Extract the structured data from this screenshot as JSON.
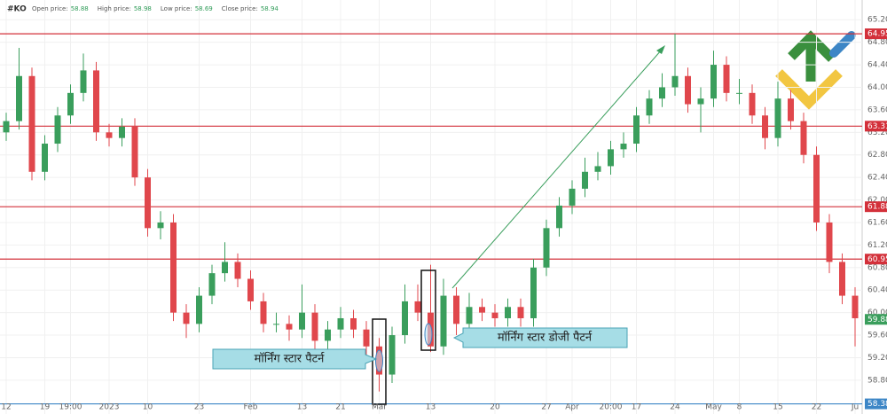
{
  "header": {
    "symbol": "#KO",
    "fields": [
      {
        "label": "Open price:",
        "value": 58.88
      },
      {
        "label": "High price:",
        "value": 58.98
      },
      {
        "label": "Low price:",
        "value": 58.69
      },
      {
        "label": "Close price:",
        "value": 58.94
      }
    ]
  },
  "chart_data": {
    "type": "candlestick",
    "categories": [
      "12",
      null,
      null,
      "19",
      null,
      "19:00",
      null,
      null,
      "2023",
      null,
      null,
      "10",
      null,
      null,
      null,
      "23",
      null,
      null,
      null,
      "Feb",
      null,
      null,
      null,
      "13",
      null,
      null,
      "21",
      null,
      null,
      "Mar",
      null,
      null,
      null,
      "13",
      null,
      null,
      null,
      null,
      "20",
      null,
      null,
      null,
      "27",
      null,
      "Apr",
      null,
      null,
      "20:00",
      null,
      "17",
      null,
      null,
      "24",
      null,
      null,
      "May",
      null,
      "8",
      null,
      null,
      "15",
      null,
      null,
      "22",
      null,
      null,
      "Ju"
    ],
    "open": [
      63.2,
      63.4,
      64.2,
      62.5,
      63.0,
      63.5,
      63.9,
      64.3,
      63.2,
      63.1,
      63.3,
      62.4,
      61.5,
      61.6,
      60.0,
      59.8,
      60.3,
      60.7,
      60.9,
      60.6,
      60.2,
      59.8,
      59.8,
      59.7,
      60.0,
      59.5,
      59.7,
      59.9,
      59.7,
      59.4,
      58.9,
      59.6,
      60.2,
      60.0,
      59.4,
      60.3,
      59.8,
      60.1,
      60.0,
      59.9,
      60.1,
      59.9,
      60.8,
      61.5,
      61.9,
      62.2,
      62.5,
      62.6,
      62.9,
      63.0,
      63.5,
      63.8,
      64.0,
      64.2,
      63.7,
      63.8,
      64.4,
      63.9,
      63.9,
      63.5,
      63.1,
      63.8,
      63.4,
      62.8,
      61.6,
      60.9,
      60.3
    ],
    "high": [
      63.55,
      64.7,
      64.35,
      63.15,
      63.65,
      64.05,
      64.6,
      64.45,
      63.35,
      63.45,
      63.45,
      62.55,
      61.8,
      61.75,
      60.15,
      60.45,
      60.85,
      61.25,
      61.05,
      60.75,
      60.35,
      60.0,
      59.95,
      60.5,
      60.15,
      59.85,
      60.1,
      60.05,
      59.85,
      59.55,
      59.75,
      60.5,
      60.5,
      60.85,
      60.6,
      60.45,
      60.35,
      60.25,
      60.15,
      60.25,
      60.25,
      60.95,
      61.65,
      62.05,
      62.35,
      62.75,
      62.85,
      63.05,
      63.2,
      63.65,
      63.95,
      64.25,
      64.95,
      64.35,
      64.0,
      64.65,
      64.55,
      64.15,
      64.05,
      63.65,
      64.1,
      63.95,
      63.55,
      62.95,
      61.75,
      61.05,
      60.45
    ],
    "low": [
      63.05,
      63.25,
      62.35,
      62.35,
      62.85,
      63.35,
      63.75,
      63.05,
      62.95,
      62.95,
      62.25,
      61.35,
      61.3,
      59.85,
      59.55,
      59.65,
      60.15,
      60.55,
      60.45,
      60.05,
      59.65,
      59.65,
      59.5,
      59.55,
      59.35,
      59.35,
      59.55,
      59.55,
      59.25,
      58.6,
      58.75,
      59.45,
      59.85,
      59.3,
      59.25,
      59.6,
      59.65,
      59.85,
      59.75,
      59.75,
      59.75,
      59.75,
      60.65,
      61.35,
      61.75,
      62.05,
      62.35,
      62.45,
      62.75,
      62.85,
      63.35,
      63.65,
      63.85,
      63.55,
      63.2,
      63.65,
      63.75,
      63.7,
      63.35,
      62.9,
      62.95,
      63.25,
      62.65,
      61.45,
      60.7,
      60.15,
      59.4
    ],
    "close": [
      63.4,
      64.2,
      62.5,
      63.0,
      63.5,
      63.9,
      64.3,
      63.2,
      63.1,
      63.3,
      62.4,
      61.5,
      61.6,
      60.0,
      59.8,
      60.3,
      60.7,
      60.9,
      60.6,
      60.2,
      59.8,
      59.8,
      59.7,
      60.0,
      59.5,
      59.7,
      59.9,
      59.7,
      59.4,
      58.9,
      59.6,
      60.2,
      60.0,
      59.4,
      60.3,
      59.8,
      60.1,
      60.0,
      59.9,
      60.1,
      59.9,
      60.8,
      61.5,
      61.9,
      62.2,
      62.5,
      62.6,
      62.9,
      63.0,
      63.5,
      63.8,
      64.0,
      64.2,
      63.7,
      63.8,
      64.4,
      63.9,
      63.9,
      63.5,
      63.1,
      63.8,
      63.4,
      62.8,
      61.6,
      60.9,
      60.3,
      59.9
    ],
    "up_color": "#3a9e5c",
    "down_color": "#e0474c",
    "ylim": [
      58.2,
      65.55
    ],
    "yticks": [
      {
        "value": 65.2,
        "label": "65.20"
      },
      {
        "value": 64.8,
        "label": "64.80"
      },
      {
        "value": 64.4,
        "label": "64.40"
      },
      {
        "value": 64.0,
        "label": "64.00"
      },
      {
        "value": 63.6,
        "label": "63.60"
      },
      {
        "value": 63.2,
        "label": "63.20"
      },
      {
        "value": 62.8,
        "label": "62.80"
      },
      {
        "value": 62.4,
        "label": "62.40"
      },
      {
        "value": 62.0,
        "label": "62.00"
      },
      {
        "value": 61.6,
        "label": "61.60"
      },
      {
        "value": 61.2,
        "label": "61.20"
      },
      {
        "value": 60.8,
        "label": "60.80"
      },
      {
        "value": 60.4,
        "label": "60.40"
      },
      {
        "value": 60.0,
        "label": "60.00"
      },
      {
        "value": 59.6,
        "label": "59.60"
      },
      {
        "value": 59.2,
        "label": "59.20"
      },
      {
        "value": 58.8,
        "label": "58.80"
      }
    ],
    "grid": true,
    "levels": [
      {
        "value": 64.95,
        "color": "#d3303a"
      },
      {
        "value": 63.31,
        "color": "#d3303a"
      },
      {
        "value": 61.88,
        "color": "#d3303a"
      },
      {
        "value": 60.95,
        "color": "#d3303a"
      },
      {
        "value": 58.38,
        "color": "#3d86c6"
      }
    ],
    "price_tag": {
      "value": 59.88,
      "color": "#3a9e5c"
    },
    "annotations": [
      "मॉर्निंग स्टार पैटर्न",
      "मॉर्निंग स्टार डोजी पैटर्न"
    ]
  }
}
